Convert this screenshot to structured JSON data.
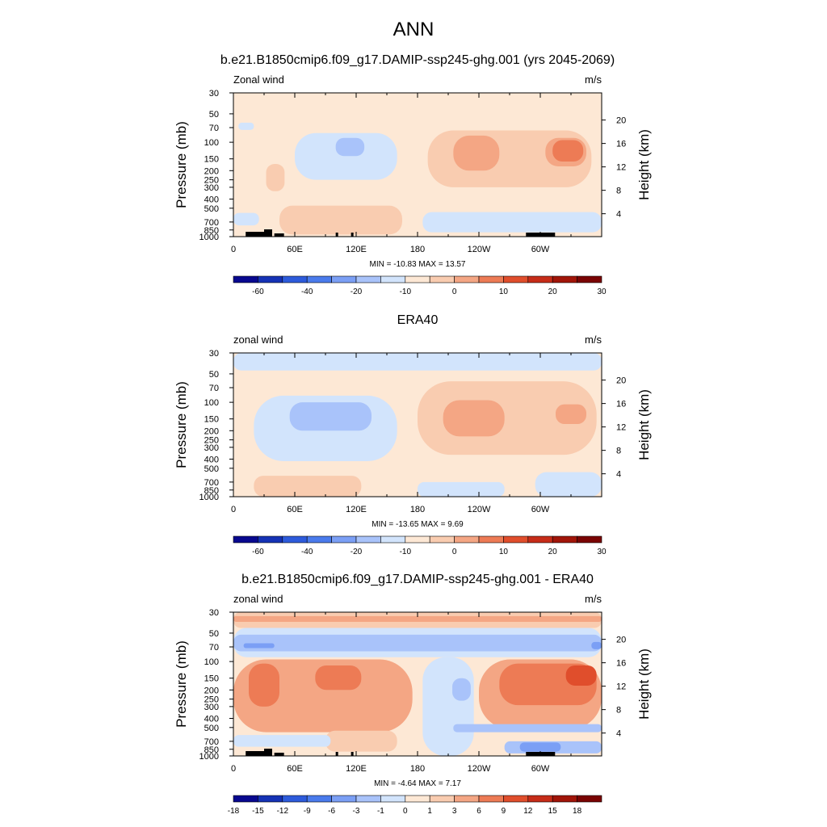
{
  "figure": {
    "title": "ANN"
  },
  "panels": [
    {
      "title": "b.e21.B1850cmip6.f09_g17.DAMIP-ssp245-ghg.001 (yrs 2045-2069)",
      "left_label": "Zonal wind",
      "right_label": "m/s",
      "stats": "MIN = -10.83  MAX =  13.57",
      "ylabel": "Pressure (mb)",
      "y2label": "Height (km)",
      "show_topo": true,
      "colorbar": {
        "labels": [
          "-60",
          "-40",
          "-20",
          "-10",
          "0",
          "10",
          "20",
          "30"
        ],
        "colors": [
          "#08088f",
          "#1532b5",
          "#2d5bdb",
          "#4a7bec",
          "#7b9ff5",
          "#a9c3fa",
          "#d2e4fc",
          "#fde8d5",
          "#f9ccb0",
          "#f4a684",
          "#ed7b55",
          "#e04e2c",
          "#c62c18",
          "#a11509",
          "#7a0403"
        ]
      }
    },
    {
      "title": "ERA40",
      "left_label": "zonal wind",
      "right_label": "m/s",
      "stats": "MIN = -13.65  MAX =   9.69",
      "ylabel": "Pressure (mb)",
      "y2label": "Height (km)",
      "show_topo": false,
      "colorbar": {
        "labels": [
          "-60",
          "-40",
          "-20",
          "-10",
          "0",
          "10",
          "20",
          "30"
        ],
        "colors": [
          "#08088f",
          "#1532b5",
          "#2d5bdb",
          "#4a7bec",
          "#7b9ff5",
          "#a9c3fa",
          "#d2e4fc",
          "#fde8d5",
          "#f9ccb0",
          "#f4a684",
          "#ed7b55",
          "#e04e2c",
          "#c62c18",
          "#a11509",
          "#7a0403"
        ]
      }
    },
    {
      "title": "b.e21.B1850cmip6.f09_g17.DAMIP-ssp245-ghg.001 - ERA40",
      "left_label": "zonal wind",
      "right_label": "m/s",
      "stats": "MIN =  -4.64  MAX =   7.17",
      "ylabel": "Pressure (mb)",
      "y2label": "Height (km)",
      "show_topo": true,
      "colorbar": {
        "labels": [
          "-18",
          "-15",
          "-12",
          "-9",
          "-6",
          "-3",
          "-1",
          "0",
          "1",
          "3",
          "6",
          "9",
          "12",
          "15",
          "18"
        ],
        "colors": [
          "#08088f",
          "#1532b5",
          "#2d5bdb",
          "#4a7bec",
          "#7b9ff5",
          "#a9c3fa",
          "#d2e4fc",
          "#fde8d5",
          "#f9ccb0",
          "#f4a684",
          "#ed7b55",
          "#e04e2c",
          "#c62c18",
          "#a11509",
          "#7a0403"
        ]
      }
    }
  ],
  "chart_data": [
    {
      "type": "heatmap",
      "title": "b.e21.B1850cmip6.f09_g17.DAMIP-ssp245-ghg.001 (yrs 2045-2069)",
      "xlabel": "",
      "ylabel": "Pressure (mb)",
      "y2label": "Height (km)",
      "x_ticks": [
        "0",
        "60E",
        "120E",
        "180",
        "120W",
        "60W"
      ],
      "x_range": [
        0,
        360
      ],
      "y_ticks": [
        "30",
        "50",
        "70",
        "100",
        "150",
        "200",
        "250",
        "300",
        "400",
        "500",
        "700",
        "850",
        "1000"
      ],
      "y_range_mb": [
        30,
        1000
      ],
      "y_scale": "log",
      "y2_ticks": [
        "4",
        "8",
        "12",
        "16",
        "20"
      ],
      "value_range": [
        -10.83,
        13.57
      ],
      "regions": [
        {
          "level": 0,
          "lon": [
            0,
            360
          ],
          "p": [
            30,
            1000
          ]
        },
        {
          "level": 1,
          "lon": [
            190,
            350
          ],
          "p": [
            75,
            300
          ]
        },
        {
          "level": 2,
          "lon": [
            215,
            260
          ],
          "p": [
            85,
            200
          ]
        },
        {
          "level": 2,
          "lon": [
            305,
            345
          ],
          "p": [
            90,
            180
          ]
        },
        {
          "level": 3,
          "lon": [
            312,
            342
          ],
          "p": [
            95,
            160
          ]
        },
        {
          "level": 1,
          "lon": [
            32,
            50
          ],
          "p": [
            170,
            330
          ]
        },
        {
          "level": 1,
          "lon": [
            45,
            165
          ],
          "p": [
            470,
            950
          ]
        },
        {
          "level": -1,
          "lon": [
            60,
            160
          ],
          "p": [
            80,
            250
          ]
        },
        {
          "level": -2,
          "lon": [
            100,
            128
          ],
          "p": [
            90,
            140
          ]
        },
        {
          "level": -1,
          "lon": [
            185,
            360
          ],
          "p": [
            550,
            900
          ]
        },
        {
          "level": -1,
          "lon": [
            0,
            25
          ],
          "p": [
            560,
            760
          ]
        },
        {
          "level": -1,
          "lon": [
            5,
            20
          ],
          "p": [
            62,
            74
          ]
        }
      ]
    },
    {
      "type": "heatmap",
      "title": "ERA40",
      "xlabel": "",
      "ylabel": "Pressure (mb)",
      "y2label": "Height (km)",
      "x_ticks": [
        "0",
        "60E",
        "120E",
        "180",
        "120W",
        "60W"
      ],
      "x_range": [
        0,
        360
      ],
      "y_ticks": [
        "30",
        "50",
        "70",
        "100",
        "150",
        "200",
        "250",
        "300",
        "400",
        "500",
        "700",
        "850",
        "1000"
      ],
      "y_range_mb": [
        30,
        1000
      ],
      "y_scale": "log",
      "y2_ticks": [
        "4",
        "8",
        "12",
        "16",
        "20"
      ],
      "value_range": [
        -13.65,
        9.69
      ],
      "regions": [
        {
          "level": 0,
          "lon": [
            0,
            360
          ],
          "p": [
            30,
            1000
          ]
        },
        {
          "level": -1,
          "lon": [
            0,
            360
          ],
          "p": [
            30,
            46
          ]
        },
        {
          "level": -1,
          "lon": [
            20,
            160
          ],
          "p": [
            85,
            420
          ]
        },
        {
          "level": -2,
          "lon": [
            55,
            135
          ],
          "p": [
            100,
            200
          ]
        },
        {
          "level": 1,
          "lon": [
            180,
            355
          ],
          "p": [
            60,
            360
          ]
        },
        {
          "level": 2,
          "lon": [
            205,
            265
          ],
          "p": [
            95,
            230
          ]
        },
        {
          "level": 2,
          "lon": [
            315,
            345
          ],
          "p": [
            105,
            170
          ]
        },
        {
          "level": 1,
          "lon": [
            20,
            125
          ],
          "p": [
            600,
            1000
          ]
        },
        {
          "level": -1,
          "lon": [
            180,
            265
          ],
          "p": [
            700,
            1000
          ]
        },
        {
          "level": -1,
          "lon": [
            295,
            360
          ],
          "p": [
            550,
            1000
          ]
        }
      ]
    },
    {
      "type": "heatmap",
      "title": "b.e21.B1850cmip6.f09_g17.DAMIP-ssp245-ghg.001 - ERA40",
      "xlabel": "",
      "ylabel": "Pressure (mb)",
      "y2label": "Height (km)",
      "x_ticks": [
        "0",
        "60E",
        "120E",
        "180",
        "120W",
        "60W"
      ],
      "x_range": [
        0,
        360
      ],
      "y_ticks": [
        "30",
        "50",
        "70",
        "100",
        "150",
        "200",
        "250",
        "300",
        "400",
        "500",
        "700",
        "850",
        "1000"
      ],
      "y_range_mb": [
        30,
        1000
      ],
      "y_scale": "log",
      "y2_ticks": [
        "4",
        "8",
        "12",
        "16",
        "20"
      ],
      "value_range": [
        -4.64,
        7.17
      ],
      "regions": [
        {
          "level": 0,
          "lon": [
            0,
            360
          ],
          "p": [
            30,
            1000
          ]
        },
        {
          "level": 1,
          "lon": [
            0,
            360
          ],
          "p": [
            30,
            44
          ]
        },
        {
          "level": 2,
          "lon": [
            0,
            360
          ],
          "p": [
            33,
            38
          ]
        },
        {
          "level": -1,
          "lon": [
            0,
            360
          ],
          "p": [
            44,
            90
          ]
        },
        {
          "level": -2,
          "lon": [
            0,
            360
          ],
          "p": [
            52,
            78
          ]
        },
        {
          "level": -3,
          "lon": [
            10,
            40
          ],
          "p": [
            64,
            72
          ]
        },
        {
          "level": -3,
          "lon": [
            350,
            360
          ],
          "p": [
            62,
            74
          ]
        },
        {
          "level": 2,
          "lon": [
            0,
            175
          ],
          "p": [
            95,
            560
          ]
        },
        {
          "level": 3,
          "lon": [
            15,
            45
          ],
          "p": [
            105,
            300
          ]
        },
        {
          "level": 3,
          "lon": [
            80,
            125
          ],
          "p": [
            110,
            200
          ]
        },
        {
          "level": 1,
          "lon": [
            90,
            160
          ],
          "p": [
            540,
            900
          ]
        },
        {
          "level": 2,
          "lon": [
            240,
            360
          ],
          "p": [
            95,
            520
          ]
        },
        {
          "level": 3,
          "lon": [
            260,
            355
          ],
          "p": [
            105,
            290
          ]
        },
        {
          "level": 4,
          "lon": [
            325,
            355
          ],
          "p": [
            110,
            180
          ]
        },
        {
          "level": -1,
          "lon": [
            185,
            235
          ],
          "p": [
            90,
            1000
          ]
        },
        {
          "level": -2,
          "lon": [
            214,
            232
          ],
          "p": [
            150,
            260
          ]
        },
        {
          "level": -1,
          "lon": [
            0,
            95
          ],
          "p": [
            600,
            800
          ]
        },
        {
          "level": -2,
          "lon": [
            215,
            360
          ],
          "p": [
            460,
            560
          ]
        },
        {
          "level": -2,
          "lon": [
            265,
            360
          ],
          "p": [
            700,
            940
          ]
        },
        {
          "level": -3,
          "lon": [
            280,
            320
          ],
          "p": [
            720,
            900
          ]
        }
      ]
    }
  ]
}
